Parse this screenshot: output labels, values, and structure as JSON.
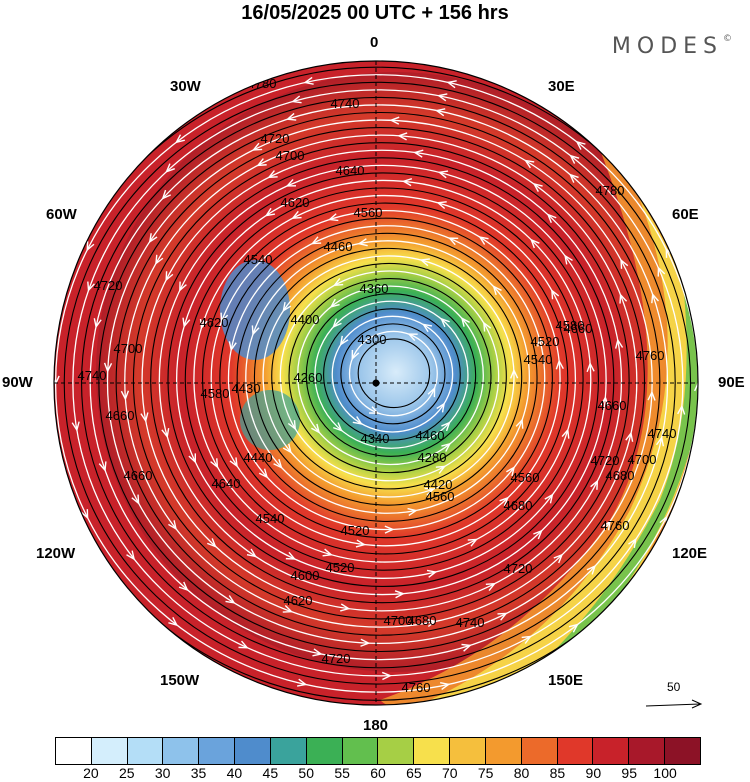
{
  "header": {
    "title": "16/05/2025  00 UTC  + 156 hrs",
    "brand": "MODES",
    "brand_mark": "©"
  },
  "map": {
    "projection": "polar-stereographic",
    "longitude_labels": {
      "top": "0",
      "bottom": "180",
      "left": "90W",
      "right": "90E",
      "upper_left_1": "30W",
      "upper_left_2": "60W",
      "upper_right_1": "30E",
      "upper_right_2": "60E",
      "lower_left_1": "120W",
      "lower_left_2": "150W",
      "lower_right_1": "120E",
      "lower_right_2": "150E"
    },
    "contour_labels": [
      "4780",
      "4740",
      "4720",
      "4700",
      "4640",
      "4620",
      "4560",
      "4460",
      "4540",
      "4360",
      "4300",
      "4260",
      "4340",
      "4400",
      "4430",
      "4440",
      "4580",
      "4660",
      "4620",
      "4700",
      "4740",
      "4720",
      "4660",
      "4640",
      "4540",
      "4520",
      "4520",
      "4600",
      "4620",
      "4680",
      "4700",
      "4720",
      "4760",
      "4740",
      "4720",
      "4680",
      "4560",
      "4420",
      "4280",
      "4460",
      "4540",
      "4520",
      "4580",
      "4660",
      "4680",
      "4700",
      "4740",
      "4760",
      "4780",
      "4760",
      "4720",
      "4660",
      "4560"
    ],
    "vector_reference": "50"
  },
  "colorbar": {
    "ticks": [
      "20",
      "25",
      "30",
      "35",
      "40",
      "45",
      "50",
      "55",
      "60",
      "65",
      "70",
      "75",
      "80",
      "85",
      "90",
      "95",
      "100"
    ],
    "colors": [
      "#ffffff",
      "#d4eefc",
      "#b4def7",
      "#8ec2eb",
      "#6aa3dc",
      "#4f8ccc",
      "#3aa39c",
      "#3bb055",
      "#62bf4e",
      "#a6cf45",
      "#f7e04c",
      "#f5bf3d",
      "#f39a2e",
      "#ec6a2a",
      "#e0382a",
      "#c8222a",
      "#a8182a",
      "#8c1226"
    ]
  }
}
